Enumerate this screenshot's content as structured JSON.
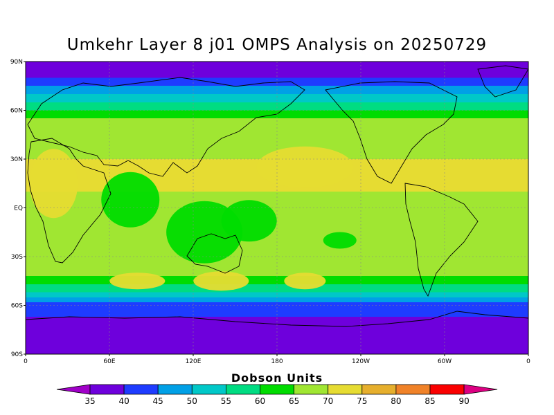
{
  "title": "Umkehr Layer 8 j01 OMPS Analysis on 20250729",
  "lat_ticks": [
    "90N",
    "60N",
    "30N",
    "EQ",
    "30S",
    "60S",
    "90S"
  ],
  "lon_ticks": [
    "0",
    "60E",
    "120E",
    "180",
    "120W",
    "60W",
    "0"
  ],
  "colorbar": {
    "title": "Dobson Units",
    "levels": [
      35,
      40,
      45,
      50,
      55,
      60,
      65,
      70,
      75,
      80,
      85,
      90
    ],
    "colors": [
      "#a000c8",
      "#6e00dc",
      "#1e3cff",
      "#00a0e6",
      "#00c8c8",
      "#00dc82",
      "#00dc00",
      "#a0e632",
      "#e6dc32",
      "#e6af2d",
      "#f08228",
      "#fa0000",
      "#dc0082"
    ]
  },
  "chart_data": {
    "type": "heatmap",
    "title": "Umkehr Layer 8 j01 OMPS Analysis on 20250729",
    "units": "Dobson Units",
    "xlim": [
      0,
      360
    ],
    "ylim": [
      -90,
      90
    ],
    "lon_labels": [
      "0",
      "60E",
      "120E",
      "180",
      "120W",
      "60W",
      "0"
    ],
    "lat_labels": [
      "90N",
      "60N",
      "30N",
      "EQ",
      "30S",
      "60S",
      "90S"
    ],
    "zonal_profile": [
      {
        "lat": 90,
        "value": 37
      },
      {
        "lat": 80,
        "value": 42
      },
      {
        "lat": 75,
        "value": 47
      },
      {
        "lat": 70,
        "value": 52
      },
      {
        "lat": 65,
        "value": 57
      },
      {
        "lat": 60,
        "value": 62
      },
      {
        "lat": 55,
        "value": 64
      },
      {
        "lat": 45,
        "value": 67
      },
      {
        "lat": 30,
        "value": 71
      },
      {
        "lat": 10,
        "value": 70
      },
      {
        "lat": 0,
        "value": 69
      },
      {
        "lat": -20,
        "value": 67
      },
      {
        "lat": -35,
        "value": 68
      },
      {
        "lat": -42,
        "value": 66
      },
      {
        "lat": -47,
        "value": 62
      },
      {
        "lat": -52,
        "value": 57
      },
      {
        "lat": -55,
        "value": 52
      },
      {
        "lat": -58,
        "value": 47
      },
      {
        "lat": -62,
        "value": 42
      },
      {
        "lat": -67,
        "value": 38
      },
      {
        "lat": -90,
        "value": 37
      }
    ],
    "features": [
      {
        "lon": 75,
        "lat": 5,
        "value": 62
      },
      {
        "lon": 128,
        "lat": -15,
        "value": 63
      },
      {
        "lon": 160,
        "lat": -8,
        "value": 63
      },
      {
        "lon": 225,
        "lat": -20,
        "value": 63
      },
      {
        "lon": 200,
        "lat": 25,
        "value": 71
      },
      {
        "lon": 20,
        "lat": 15,
        "value": 72
      },
      {
        "lon": 80,
        "lat": -45,
        "value": 71
      },
      {
        "lon": 140,
        "lat": -45,
        "value": 71
      },
      {
        "lon": 200,
        "lat": -45,
        "value": 71
      }
    ]
  }
}
